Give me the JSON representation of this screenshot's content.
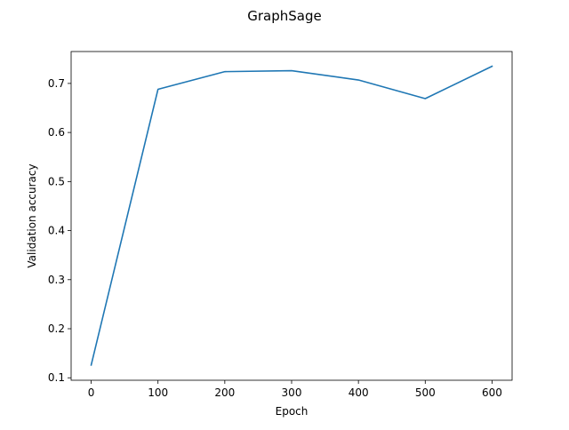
{
  "chart_data": {
    "type": "line",
    "title": "GraphSage",
    "xlabel": "Epoch",
    "ylabel": "Validation accuracy",
    "xlim": [
      -30,
      630
    ],
    "ylim": [
      0.095,
      0.765
    ],
    "xticks": [
      0,
      100,
      200,
      300,
      400,
      500,
      600
    ],
    "yticks": [
      0.1,
      0.2,
      0.3,
      0.4,
      0.5,
      0.6,
      0.7
    ],
    "grid": false,
    "legend": "none",
    "series": [
      {
        "color": "#1f77b4",
        "x": [
          0,
          100,
          200,
          300,
          400,
          500,
          600
        ],
        "y": [
          0.126,
          0.688,
          0.724,
          0.726,
          0.707,
          0.669,
          0.735
        ]
      }
    ]
  }
}
